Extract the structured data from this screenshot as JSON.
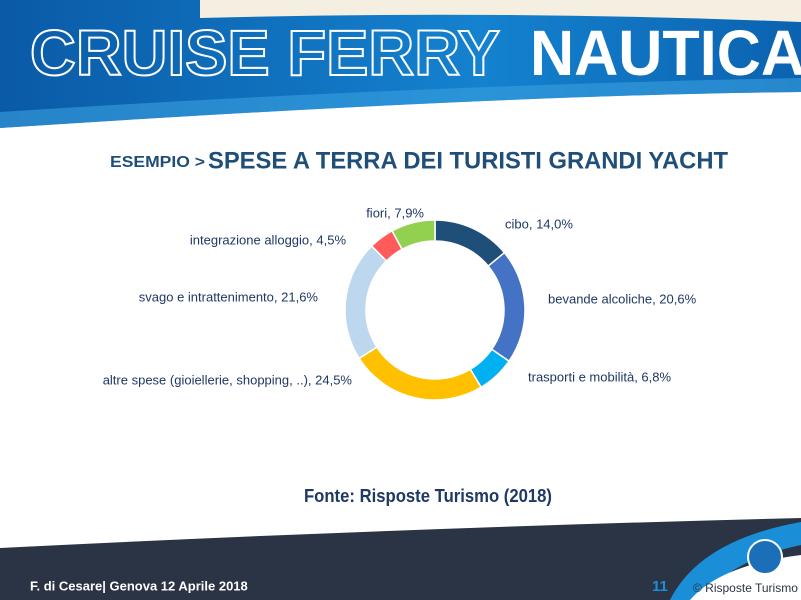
{
  "header": {
    "title_outline": "CRUISE  FERRY",
    "title_solid": "NAUTICA"
  },
  "subtitle_prefix": "ESEMPIO >",
  "chart_data": {
    "type": "donut",
    "title": "SPESE A TERRA DEI TURISTI GRANDI YACHT",
    "values": [
      14.0,
      20.6,
      6.8,
      24.5,
      21.6,
      4.5,
      7.9
    ],
    "value_labels": [
      "cibo, 14,0%",
      "bevande alcoliche, 20,6%",
      "trasporti e mobilità, 6,8%",
      "altre spese (gioiellerie, shopping, ..), 24,5%",
      "svago e intrattenimento, 21,6%",
      "integrazione alloggio, 4,5%",
      "fiori, 7,9%"
    ],
    "colors": [
      "#1f4e79",
      "#4472c4",
      "#00b0f0",
      "#ffc000",
      "#bdd7ee",
      "#ff5b5b",
      "#92d050"
    ],
    "source": "Fonte: Risposte Turismo (2018)"
  },
  "footer": {
    "author": "F. di Cesare| Genova 12 Aprile 2018",
    "page": "11",
    "copyright": "© Risposte Turismo"
  }
}
